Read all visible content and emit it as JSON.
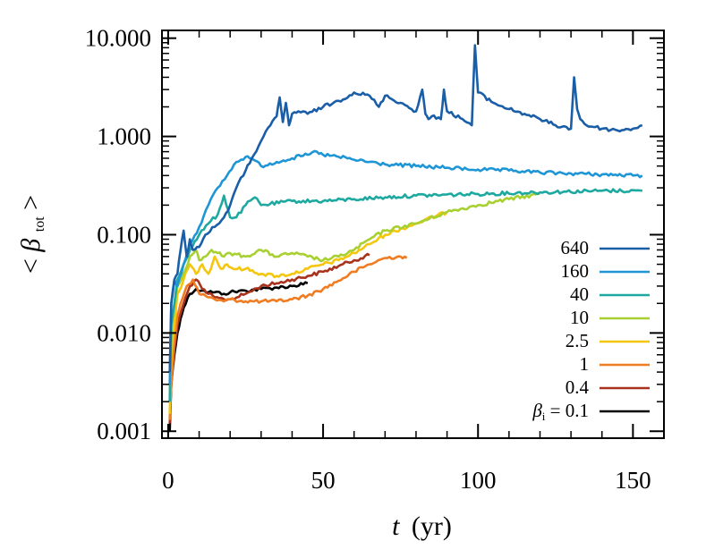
{
  "chart_data": {
    "type": "line",
    "xlabel_var": "t",
    "xlabel_unit": "(yr)",
    "ylabel_var": "β",
    "ylabel_sub": "tot",
    "ylabel_prefix": "<",
    "ylabel_suffix": ">",
    "yscale": "log",
    "xlim": [
      -2,
      160
    ],
    "ylim": [
      0.00085,
      12
    ],
    "xticks": [
      0,
      50,
      100,
      150
    ],
    "xtick_labels": [
      "0",
      "50",
      "100",
      "150"
    ],
    "yticks": [
      0.001,
      0.01,
      0.1,
      1,
      10
    ],
    "ytick_labels": [
      "0.001",
      "0.010",
      "0.100",
      "1.000",
      "10.000"
    ],
    "legend_position": "bottom-right",
    "legend_prefix_var": "β",
    "legend_prefix_sub": "i",
    "legend_prefix_eq": " = ",
    "series": [
      {
        "name": "640",
        "color": "#1a5ea8",
        "x": [
          0.5,
          1,
          2,
          3,
          4,
          5,
          6,
          7,
          8,
          10,
          12,
          15,
          18,
          20,
          22,
          25,
          27,
          30,
          33,
          35,
          36,
          37,
          38,
          39,
          40,
          42,
          45,
          50,
          55,
          60,
          65,
          68,
          70,
          75,
          80,
          82,
          83,
          84,
          85,
          88,
          89,
          90,
          95,
          98,
          99,
          100,
          105,
          110,
          115,
          120,
          125,
          130,
          131,
          132,
          133,
          135,
          140,
          145,
          150,
          153
        ],
        "y": [
          0.004,
          0.02,
          0.035,
          0.04,
          0.07,
          0.11,
          0.06,
          0.09,
          0.07,
          0.075,
          0.1,
          0.12,
          0.15,
          0.2,
          0.3,
          0.45,
          0.6,
          0.9,
          1.3,
          1.6,
          2.5,
          1.4,
          2.2,
          1.3,
          1.7,
          1.8,
          1.7,
          2.0,
          2.3,
          2.8,
          2.6,
          2.0,
          2.6,
          2.2,
          1.8,
          3.0,
          1.7,
          1.5,
          1.6,
          1.5,
          3.0,
          1.8,
          1.5,
          1.3,
          8.5,
          2.8,
          2.2,
          1.9,
          1.7,
          1.5,
          1.3,
          1.2,
          4.0,
          1.9,
          1.5,
          1.3,
          1.2,
          1.15,
          1.2,
          1.3
        ]
      },
      {
        "name": "160",
        "color": "#1e96d6",
        "x": [
          0.5,
          1,
          2,
          3,
          5,
          7,
          10,
          13,
          16,
          19,
          22,
          25,
          27,
          30,
          35,
          40,
          45,
          48,
          50,
          55,
          60,
          70,
          80,
          90,
          100,
          110,
          120,
          130,
          140,
          150,
          153
        ],
        "y": [
          0.003,
          0.02,
          0.035,
          0.03,
          0.05,
          0.08,
          0.12,
          0.2,
          0.3,
          0.4,
          0.55,
          0.62,
          0.6,
          0.5,
          0.55,
          0.6,
          0.65,
          0.7,
          0.65,
          0.62,
          0.58,
          0.52,
          0.5,
          0.48,
          0.46,
          0.45,
          0.43,
          0.42,
          0.41,
          0.4,
          0.4
        ]
      },
      {
        "name": "40",
        "color": "#1ea9a0",
        "x": [
          0.5,
          1,
          2,
          3,
          5,
          7,
          10,
          13,
          16,
          18,
          20,
          22,
          25,
          28,
          30,
          40,
          50,
          60,
          70,
          80,
          100,
          120,
          140,
          153
        ],
        "y": [
          0.002,
          0.012,
          0.02,
          0.035,
          0.05,
          0.07,
          0.1,
          0.13,
          0.16,
          0.25,
          0.15,
          0.15,
          0.2,
          0.24,
          0.2,
          0.22,
          0.22,
          0.23,
          0.24,
          0.25,
          0.26,
          0.27,
          0.28,
          0.28
        ]
      },
      {
        "name": "10",
        "color": "#a8d030",
        "x": [
          0.5,
          1,
          2,
          3,
          5,
          7,
          9,
          10,
          12,
          14,
          16,
          18,
          20,
          25,
          30,
          35,
          40,
          45,
          50,
          55,
          60,
          65,
          70,
          80,
          90,
          100,
          110,
          120
        ],
        "y": [
          0.002,
          0.01,
          0.02,
          0.03,
          0.04,
          0.06,
          0.07,
          0.055,
          0.06,
          0.07,
          0.065,
          0.06,
          0.065,
          0.06,
          0.07,
          0.06,
          0.065,
          0.06,
          0.055,
          0.06,
          0.07,
          0.09,
          0.11,
          0.13,
          0.17,
          0.2,
          0.23,
          0.26
        ]
      },
      {
        "name": "2.5",
        "color": "#f4c60c",
        "x": [
          0.5,
          1,
          2,
          3,
          5,
          7,
          9,
          11,
          13,
          15,
          17,
          19,
          21,
          25,
          30,
          35,
          40,
          45,
          50,
          55,
          60,
          65,
          70,
          80,
          90
        ],
        "y": [
          0.0015,
          0.006,
          0.012,
          0.025,
          0.035,
          0.05,
          0.04,
          0.05,
          0.04,
          0.06,
          0.045,
          0.05,
          0.045,
          0.045,
          0.04,
          0.038,
          0.04,
          0.045,
          0.05,
          0.055,
          0.065,
          0.08,
          0.1,
          0.13,
          0.17
        ]
      },
      {
        "name": "1",
        "color": "#f07c22",
        "x": [
          0.5,
          1,
          2,
          3,
          4,
          6,
          8,
          10,
          12,
          15,
          18,
          20,
          25,
          30,
          35,
          40,
          45,
          50,
          55,
          60,
          65,
          70,
          75,
          77
        ],
        "y": [
          0.0013,
          0.003,
          0.008,
          0.015,
          0.02,
          0.03,
          0.035,
          0.025,
          0.024,
          0.022,
          0.021,
          0.022,
          0.021,
          0.021,
          0.021,
          0.022,
          0.024,
          0.028,
          0.034,
          0.042,
          0.05,
          0.058,
          0.06,
          0.058
        ]
      },
      {
        "name": "0.4",
        "color": "#a8321c",
        "x": [
          0.5,
          1,
          2,
          3,
          5,
          7,
          9,
          11,
          13,
          15,
          18,
          20,
          25,
          30,
          35,
          40,
          45,
          50,
          55,
          60,
          65
        ],
        "y": [
          0.0012,
          0.003,
          0.007,
          0.012,
          0.02,
          0.03,
          0.035,
          0.028,
          0.025,
          0.023,
          0.022,
          0.022,
          0.025,
          0.03,
          0.032,
          0.035,
          0.038,
          0.042,
          0.048,
          0.055,
          0.062
        ]
      },
      {
        "name": "0.1",
        "color": "#000000",
        "x": [
          0.5,
          1,
          2,
          3,
          4,
          5,
          7,
          9,
          11,
          13,
          15,
          18,
          20,
          25,
          30,
          35,
          40,
          45
        ],
        "y": [
          0.001,
          0.003,
          0.006,
          0.01,
          0.014,
          0.018,
          0.025,
          0.028,
          0.027,
          0.026,
          0.026,
          0.025,
          0.026,
          0.027,
          0.028,
          0.029,
          0.03,
          0.032
        ]
      }
    ]
  }
}
